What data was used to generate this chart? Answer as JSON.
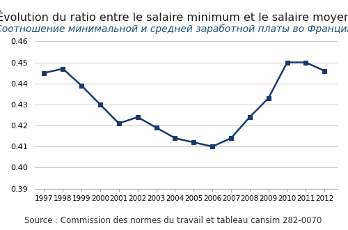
{
  "title": "Évolution du ratio entre le salaire minimum et le salaire moyen",
  "subtitle": "Соотношение минимальной и средней заработной платы во Франции",
  "source": "Source : Commission des normes du travail et tableau cansim 282-0070",
  "years": [
    1997,
    1998,
    1999,
    2000,
    2001,
    2002,
    2003,
    2004,
    2005,
    2006,
    2007,
    2008,
    2009,
    2010,
    2011,
    2012
  ],
  "values": [
    0.445,
    0.447,
    0.439,
    0.43,
    0.421,
    0.424,
    0.419,
    0.414,
    0.412,
    0.41,
    0.414,
    0.424,
    0.433,
    0.45,
    0.45,
    0.446
  ],
  "ylim": [
    0.39,
    0.46
  ],
  "yticks": [
    0.39,
    0.4,
    0.41,
    0.42,
    0.43,
    0.44,
    0.45,
    0.46
  ],
  "line_color": "#1a3a6b",
  "marker_color": "#1a3a6b",
  "subtitle_color": "#1a5276",
  "title_color": "#1a1a1a",
  "bg_color": "#ffffff",
  "grid_color": "#cccccc",
  "title_fontsize": 11.5,
  "subtitle_fontsize": 10,
  "source_fontsize": 8.5
}
